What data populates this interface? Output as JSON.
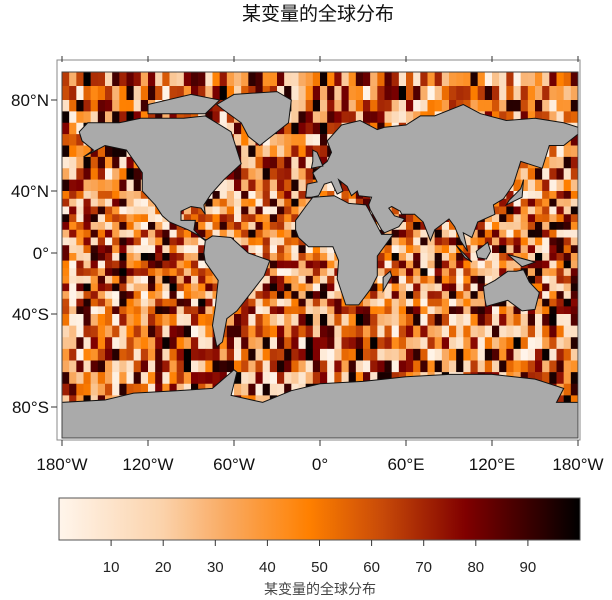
{
  "chart_data": {
    "type": "heatmap",
    "title": "某变量的全球分布",
    "projection": "global map, land masked in gray",
    "land_color": "#aaaaaa",
    "grid_cell_degrees": 5,
    "x_ticks": [
      "180°W",
      "120°W",
      "60°W",
      "0°",
      "60°E",
      "120°E",
      "180°W"
    ],
    "y_ticks": [
      "80°N",
      "40°N",
      "0°",
      "40°S",
      "80°S"
    ],
    "colorbar": {
      "range": [
        0,
        100
      ],
      "ticks": [
        10,
        20,
        30,
        40,
        50,
        60,
        70,
        80,
        90
      ],
      "label": "某变量的全球分布",
      "colors": [
        "#fff5eb",
        "#fbd2aa",
        "#f9aa62",
        "#ff8000",
        "#c84a08",
        "#800000",
        "#000000"
      ],
      "placement": "bottom"
    }
  }
}
